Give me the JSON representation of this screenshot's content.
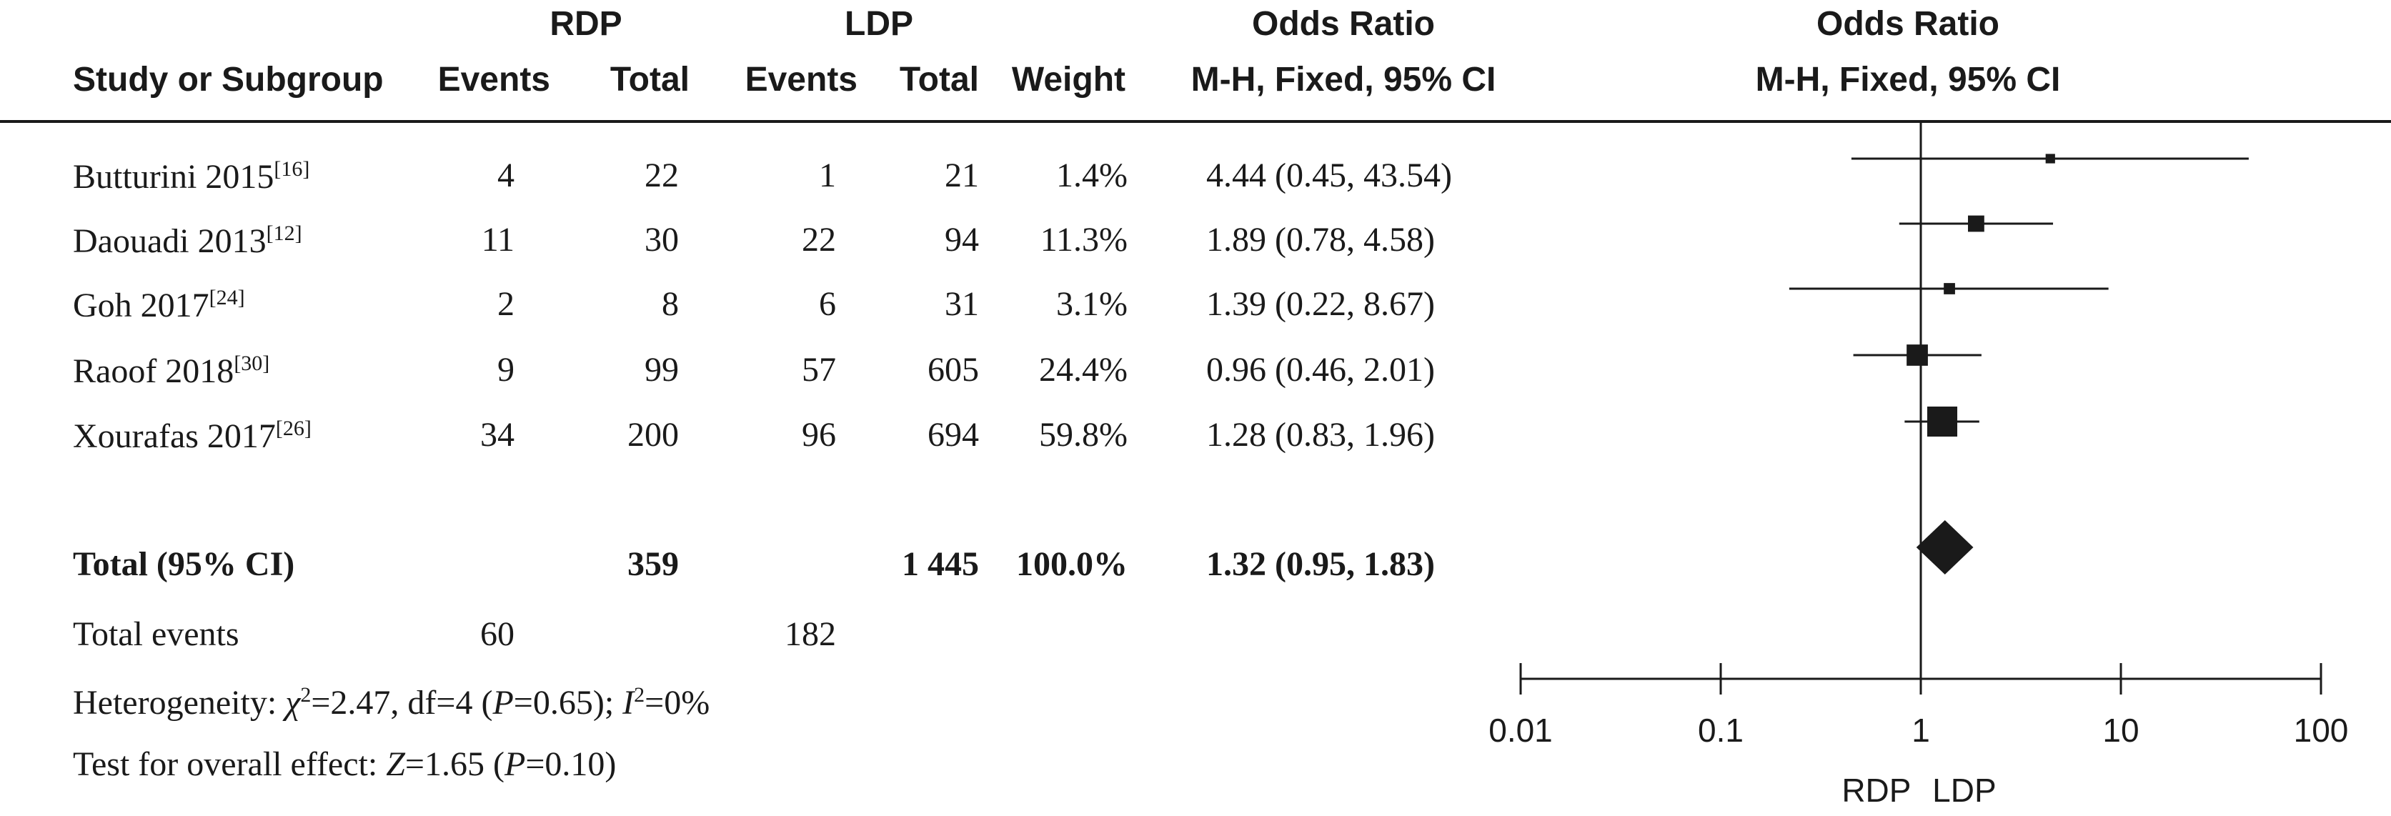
{
  "header": {
    "group1": "RDP",
    "group2": "LDP",
    "col_study": "Study or Subgroup",
    "col_events1": "Events",
    "col_total1": "Total",
    "col_events2": "Events",
    "col_total2": "Total",
    "col_weight": "Weight",
    "col_or_title": "Odds Ratio",
    "col_or_method": "M-H, Fixed, 95% CI",
    "plot_title": "Odds Ratio",
    "plot_method": "M-H, Fixed, 95% CI"
  },
  "studies": [
    {
      "name": "Butturini 2015",
      "ref": "[16]",
      "events1": "4",
      "total1": "22",
      "events2": "1",
      "total2": "21",
      "weight": "1.4%",
      "ci_text": "4.44 (0.45, 43.54)"
    },
    {
      "name": "Daouadi 2013",
      "ref": "[12]",
      "events1": "11",
      "total1": "30",
      "events2": "22",
      "total2": "94",
      "weight": "11.3%",
      "ci_text": "1.89 (0.78, 4.58)"
    },
    {
      "name": "Goh 2017",
      "ref": "[24]",
      "events1": "2",
      "total1": "8",
      "events2": "6",
      "total2": "31",
      "weight": "3.1%",
      "ci_text": "1.39 (0.22, 8.67)"
    },
    {
      "name": "Raoof 2018",
      "ref": "[30]",
      "events1": "9",
      "total1": "99",
      "events2": "57",
      "total2": "605",
      "weight": "24.4%",
      "ci_text": "0.96 (0.46, 2.01)"
    },
    {
      "name": "Xourafas 2017",
      "ref": "[26]",
      "events1": "34",
      "total1": "200",
      "events2": "96",
      "total2": "694",
      "weight": "59.8%",
      "ci_text": "1.28 (0.83, 1.96)"
    }
  ],
  "total": {
    "label": "Total (95% CI)",
    "total1": "359",
    "total2": "1 445",
    "weight": "100.0%",
    "ci_text": "1.32 (0.95, 1.83)"
  },
  "total_events": {
    "label": "Total events",
    "events1": "60",
    "events2": "182"
  },
  "heterogeneity": {
    "prefix": "Heterogeneity: ",
    "chi": "χ",
    "chi_val": "=2.47, df=4 (",
    "p": "P",
    "p_val": "=0.65); ",
    "i": "I",
    "i_val": "=0%"
  },
  "overall_effect": {
    "prefix": "Test for overall effect: ",
    "z": "Z",
    "z_val": "=1.65 (",
    "p": "P",
    "p_val": "=0.10)"
  },
  "chart_data": {
    "type": "forest",
    "scale": "log",
    "xlim": [
      0.01,
      100
    ],
    "ticks": [
      0.01,
      0.1,
      1,
      10,
      100
    ],
    "tick_labels": [
      "0.01",
      "0.1",
      "1",
      "10",
      "100"
    ],
    "reference_line": 1,
    "favours_left": "RDP",
    "favours_right": "LDP",
    "color": "#1a1a1a",
    "studies": [
      {
        "name": "Butturini 2015",
        "or": 4.44,
        "lower": 0.45,
        "upper": 43.54,
        "weight": 1.4
      },
      {
        "name": "Daouadi 2013",
        "or": 1.89,
        "lower": 0.78,
        "upper": 4.58,
        "weight": 11.3
      },
      {
        "name": "Goh 2017",
        "or": 1.39,
        "lower": 0.22,
        "upper": 8.67,
        "weight": 3.1
      },
      {
        "name": "Raoof 2018",
        "or": 0.96,
        "lower": 0.46,
        "upper": 2.01,
        "weight": 24.4
      },
      {
        "name": "Xourafas 2017",
        "or": 1.28,
        "lower": 0.83,
        "upper": 1.96,
        "weight": 59.8
      }
    ],
    "pooled": {
      "or": 1.32,
      "lower": 0.95,
      "upper": 1.83
    }
  }
}
